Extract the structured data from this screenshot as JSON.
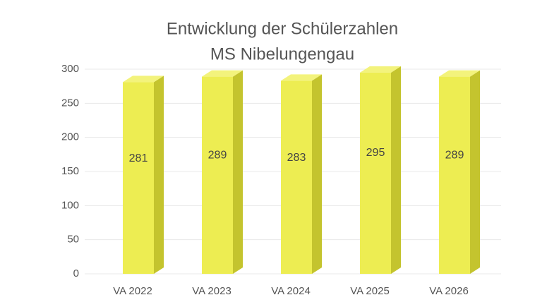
{
  "chart_data": {
    "type": "bar3d",
    "title": "Entwicklung der Schülerzahlen",
    "subtitle": "MS Nibelungengau",
    "categories": [
      "VA 2022",
      "VA 2023",
      "VA 2024",
      "VA 2025",
      "VA 2026"
    ],
    "values": [
      281,
      289,
      283,
      295,
      289
    ],
    "color": "#eded52",
    "ylim": [
      0,
      300
    ],
    "yticks": [
      0,
      50,
      100,
      150,
      200,
      250,
      300
    ],
    "grid": true
  }
}
